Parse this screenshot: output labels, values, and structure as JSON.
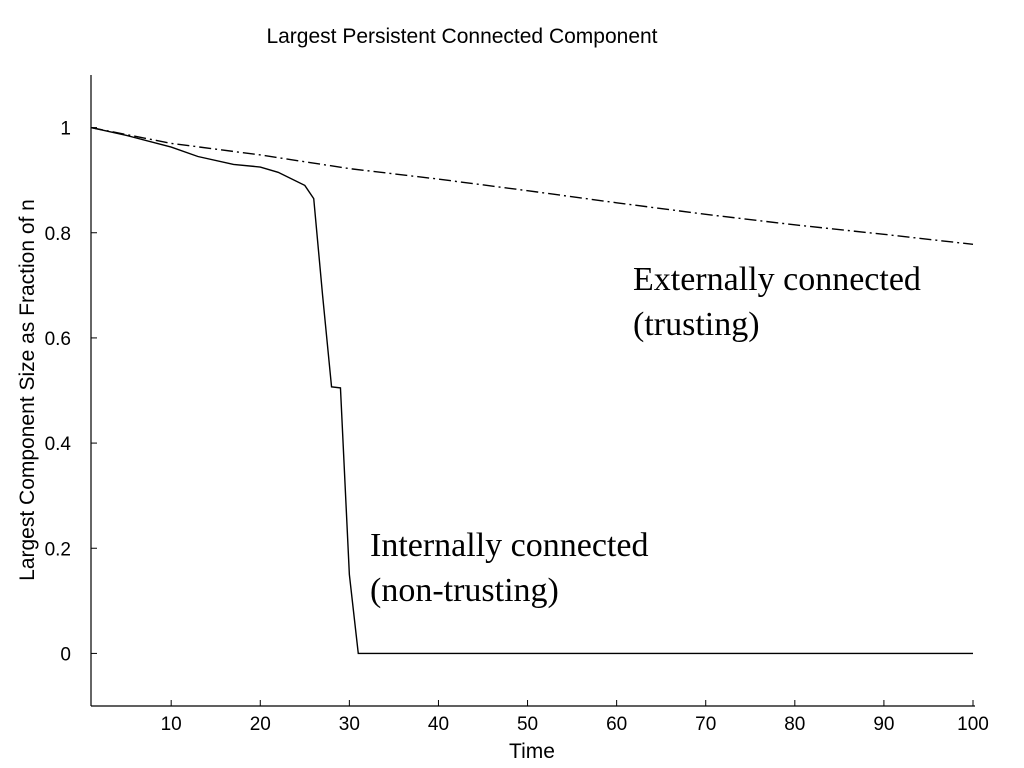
{
  "chart_data": {
    "type": "line",
    "title": "Largest Persistent Connected Component",
    "x_label": "Time",
    "y_label": "Largest Component Size as Fraction of n",
    "xlim": [
      1,
      100
    ],
    "ylim": [
      -0.1,
      1.1
    ],
    "xticks": [
      10,
      20,
      30,
      40,
      50,
      60,
      70,
      80,
      90,
      100
    ],
    "yticks": [
      0,
      0.2,
      0.4,
      0.6,
      0.8,
      1
    ],
    "series": [
      {
        "name": "Internally connected (non-trusting)",
        "color": "#000000",
        "linestyle": "solid",
        "x": [
          1,
          5,
          10,
          13,
          17,
          20,
          22,
          25,
          26,
          27,
          28,
          29,
          30,
          31,
          100
        ],
        "values": [
          1.0,
          0.985,
          0.963,
          0.945,
          0.93,
          0.925,
          0.915,
          0.89,
          0.865,
          0.68,
          0.507,
          0.505,
          0.15,
          0,
          0
        ]
      },
      {
        "name": "Externally connected (trusting)",
        "color": "#000000",
        "linestyle": "dashdot",
        "x": [
          1,
          10,
          20,
          30,
          40,
          50,
          60,
          70,
          80,
          90,
          100
        ],
        "values": [
          1.0,
          0.97,
          0.948,
          0.922,
          0.902,
          0.88,
          0.857,
          0.835,
          0.815,
          0.797,
          0.778
        ]
      }
    ],
    "annotations": [
      [
        "Externally connected",
        "(trusting)"
      ],
      [
        "Internally connected",
        "(non-trusting)"
      ]
    ]
  }
}
